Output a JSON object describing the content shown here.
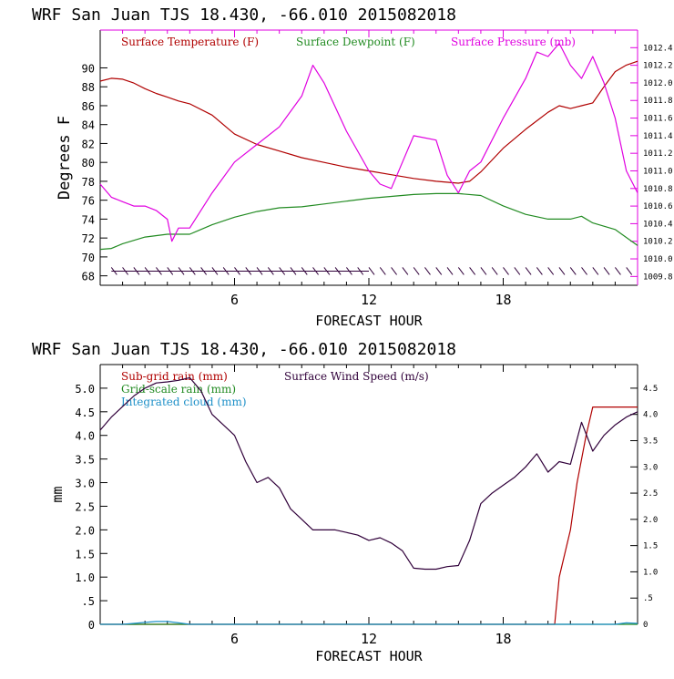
{
  "chart_data": [
    {
      "type": "line",
      "title": "WRF   San Juan TJS  18.430, -66.010  2015082018",
      "xlabel": "FORECAST HOUR",
      "ylabel": "Degrees F",
      "xlim": [
        0,
        24
      ],
      "ylim": [
        67,
        94
      ],
      "y2lim": [
        1009.7,
        1012.6
      ],
      "xticks": [
        6,
        12,
        18
      ],
      "yticks": [
        68,
        70,
        72,
        74,
        76,
        78,
        80,
        82,
        84,
        86,
        88,
        90
      ],
      "y2ticks": [
        "1009.8",
        "1010.0",
        "1010.2",
        "1010.4",
        "1010.6",
        "1010.8",
        "1011.0",
        "1011.2",
        "1011.4",
        "1011.6",
        "1011.8",
        "1012.0",
        "1012.2",
        "1012.4"
      ],
      "legend": [
        {
          "label": "Surface Temperature (F)",
          "color": "#b00000"
        },
        {
          "label": "Surface Dewpoint (F)",
          "color": "#228b22"
        },
        {
          "label": "Surface Pressure (mb)",
          "color": "#e000e0"
        }
      ],
      "series": [
        {
          "name": "Surface Temperature (F)",
          "axis": "left",
          "color": "#b00000",
          "x": [
            0,
            0.5,
            1,
            1.5,
            2,
            2.5,
            3,
            3.5,
            4,
            5,
            6,
            7,
            8,
            9,
            10,
            11,
            12,
            13,
            14,
            15,
            16,
            16.5,
            17,
            18,
            19,
            20,
            20.5,
            21,
            21.5,
            22,
            22.5,
            23,
            23.5,
            24
          ],
          "values": [
            88.6,
            88.9,
            88.8,
            88.4,
            87.8,
            87.3,
            86.9,
            86.5,
            86.2,
            85.0,
            83.0,
            81.9,
            81.2,
            80.5,
            80.0,
            79.5,
            79.1,
            78.7,
            78.3,
            78.0,
            77.8,
            78.0,
            79.0,
            81.5,
            83.5,
            85.3,
            86.0,
            85.7,
            86.0,
            86.3,
            88.0,
            89.6,
            90.3,
            90.7
          ]
        },
        {
          "name": "Surface Dewpoint (F)",
          "axis": "left",
          "color": "#228b22",
          "x": [
            0,
            0.5,
            1,
            2,
            3,
            4,
            5,
            6,
            7,
            8,
            9,
            10,
            11,
            12,
            13,
            14,
            15,
            16,
            17,
            18,
            19,
            20,
            21,
            21.5,
            22,
            23,
            24
          ],
          "values": [
            70.8,
            70.9,
            71.4,
            72.1,
            72.4,
            72.4,
            73.4,
            74.2,
            74.8,
            75.2,
            75.3,
            75.6,
            75.9,
            76.2,
            76.4,
            76.6,
            76.7,
            76.7,
            76.5,
            75.4,
            74.5,
            74.0,
            74.0,
            74.3,
            73.6,
            72.9,
            71.2
          ]
        },
        {
          "name": "Surface Pressure (mb)",
          "axis": "right",
          "color": "#e000e0",
          "x": [
            0,
            0.5,
            1,
            1.5,
            2,
            2.5,
            3,
            3.2,
            3.5,
            4,
            5,
            6,
            7,
            8,
            9,
            9.5,
            10,
            11,
            12,
            12.5,
            13,
            13.5,
            14,
            15,
            15.5,
            16,
            16.5,
            17,
            18,
            19,
            19.5,
            20,
            20.5,
            21,
            21.5,
            22,
            22.5,
            23,
            23.5,
            24
          ],
          "values": [
            1010.85,
            1010.7,
            1010.65,
            1010.6,
            1010.6,
            1010.55,
            1010.45,
            1010.2,
            1010.35,
            1010.35,
            1010.75,
            1011.1,
            1011.3,
            1011.5,
            1011.85,
            1012.2,
            1012.0,
            1011.45,
            1011.0,
            1010.85,
            1010.8,
            1011.1,
            1011.4,
            1011.35,
            1010.95,
            1010.75,
            1011.0,
            1011.1,
            1011.6,
            1012.05,
            1012.35,
            1012.3,
            1012.45,
            1012.2,
            1012.05,
            1012.3,
            1012.0,
            1011.6,
            1011.0,
            1010.75
          ]
        }
      ],
      "wind_barbs": {
        "color": "#30003a",
        "row_value": 68.5
      }
    },
    {
      "type": "line",
      "title": "WRF   San Juan TJS  18.430, -66.010  2015082018",
      "xlabel": "FORECAST HOUR",
      "ylabel": "mm",
      "xlim": [
        0,
        24
      ],
      "ylim": [
        0,
        5.5
      ],
      "y2lim": [
        0,
        4.95
      ],
      "xticks": [
        6,
        12,
        18
      ],
      "yticks": [
        "0",
        ".5",
        "1.0",
        "1.5",
        "2.0",
        "2.5",
        "3.0",
        "3.5",
        "4.0",
        "4.5",
        "5.0"
      ],
      "y2ticks": [
        "0",
        ".5",
        "1.0",
        "1.5",
        "2.0",
        "2.5",
        "3.0",
        "3.5",
        "4.0",
        "4.5"
      ],
      "legend": [
        {
          "label": "Sub-grid rain (mm)",
          "color": "#b00000"
        },
        {
          "label": "Surface Wind Speed (m/s)",
          "color": "#30003a"
        },
        {
          "label": "Grid-scale rain (mm)",
          "color": "#228b22"
        },
        {
          "label": "Integrated cloud (mm)",
          "color": "#1e90c8"
        }
      ],
      "series": [
        {
          "name": "Sub-grid rain (mm)",
          "axis": "left",
          "color": "#b00000",
          "x": [
            0,
            20.3,
            20.5,
            21.0,
            21.3,
            21.7,
            22.0,
            22.5,
            24
          ],
          "values": [
            0,
            0,
            1.0,
            2.0,
            3.0,
            4.0,
            4.6,
            4.6,
            4.6
          ]
        },
        {
          "name": "Surface Wind Speed (m/s)",
          "axis": "right",
          "color": "#30003a",
          "x": [
            0,
            0.5,
            1,
            1.5,
            2,
            2.5,
            3,
            3.5,
            4,
            4.5,
            5,
            6,
            6.5,
            7,
            7.5,
            8,
            8.5,
            9,
            9.5,
            10,
            10.5,
            11,
            11.5,
            12,
            12.5,
            13,
            13.5,
            14,
            14.5,
            15,
            15.5,
            16,
            16.5,
            17,
            17.5,
            18,
            18.5,
            19,
            19.5,
            20,
            20.5,
            21,
            21.5,
            22,
            22.5,
            23,
            23.5,
            24
          ],
          "values": [
            3.7,
            3.95,
            4.15,
            4.35,
            4.5,
            4.6,
            4.62,
            4.65,
            4.7,
            4.45,
            4.0,
            3.6,
            3.1,
            2.7,
            2.8,
            2.6,
            2.2,
            2.0,
            1.8,
            1.8,
            1.8,
            1.75,
            1.7,
            1.6,
            1.65,
            1.55,
            1.4,
            1.07,
            1.05,
            1.05,
            1.1,
            1.12,
            1.6,
            2.3,
            2.5,
            2.65,
            2.8,
            3.0,
            3.25,
            2.9,
            3.1,
            3.05,
            3.85,
            3.3,
            3.6,
            3.8,
            3.95,
            4.05
          ]
        },
        {
          "name": "Grid-scale rain (mm)",
          "axis": "left",
          "color": "#228b22",
          "x": [
            0,
            24
          ],
          "values": [
            0,
            0
          ]
        },
        {
          "name": "Integrated cloud (mm)",
          "axis": "left",
          "color": "#1e90c8",
          "x": [
            0,
            1,
            1.5,
            2,
            2.5,
            3,
            3.5,
            4,
            23,
            23.5,
            24
          ],
          "values": [
            0,
            0,
            0.02,
            0.04,
            0.06,
            0.06,
            0.03,
            0,
            0,
            0.03,
            0.02
          ]
        }
      ]
    }
  ]
}
